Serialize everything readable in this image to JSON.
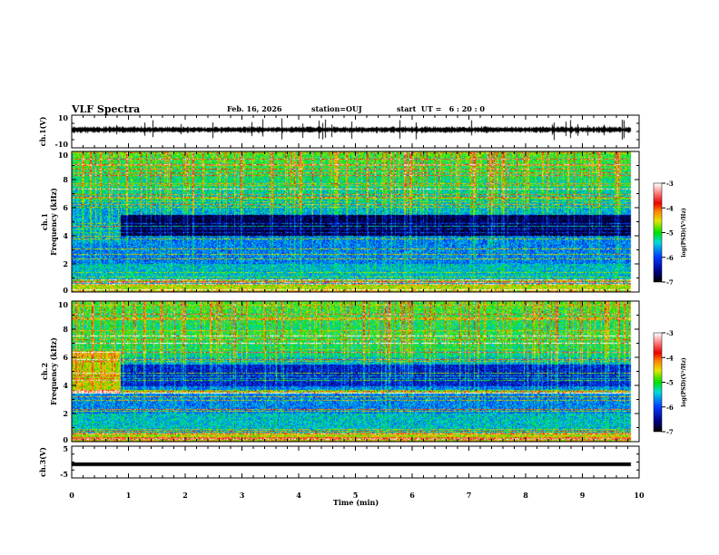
{
  "header": {
    "title": "VLF Spectra",
    "date": "Feb. 16, 2026",
    "station": "station=OUJ",
    "start": "start  UT =   6 : 20 : 0"
  },
  "chart_data": {
    "type": "heatmap",
    "xlabel": "Time (min)",
    "xlim": [
      0,
      10
    ],
    "xticks": [
      "0",
      "1",
      "2",
      "3",
      "4",
      "5",
      "6",
      "7",
      "8",
      "9",
      "10"
    ],
    "panels": [
      {
        "id": "ch1",
        "kind": "waveform",
        "ylabel": "ch.1(V)",
        "ylim": [
          -10,
          10
        ],
        "yticks": [
          "10",
          "-10"
        ]
      },
      {
        "id": "spec1",
        "kind": "spectrogram",
        "ylabel_top": "ch.1",
        "ylabel": "Frequency (kHz)",
        "ylim": [
          0,
          10
        ],
        "yticks": [
          "0",
          "2",
          "4",
          "6",
          "8",
          "10"
        ],
        "colorbar": {
          "label": "log(PSD)(V²/Hz)",
          "range": [
            -7,
            -3
          ],
          "ticks": [
            "-3",
            "-4",
            "-5",
            "-6",
            "-7"
          ]
        }
      },
      {
        "id": "spec2",
        "kind": "spectrogram",
        "ylabel_top": "ch.2",
        "ylabel": "Frequency (kHz)",
        "ylim": [
          0,
          10
        ],
        "yticks": [
          "0",
          "2",
          "4",
          "6",
          "8",
          "10"
        ],
        "colorbar": {
          "label": "log(PSD)(V²/Hz)",
          "range": [
            -7,
            -3
          ],
          "ticks": [
            "-3",
            "-4",
            "-5",
            "-6",
            "-7"
          ]
        }
      },
      {
        "id": "ch3",
        "kind": "waveform",
        "ylabel": "ch.3(V)",
        "ylim": [
          -5,
          5
        ],
        "yticks": [
          "5",
          "-5"
        ],
        "level": -0.7
      }
    ],
    "data_end_min": 9.85
  }
}
